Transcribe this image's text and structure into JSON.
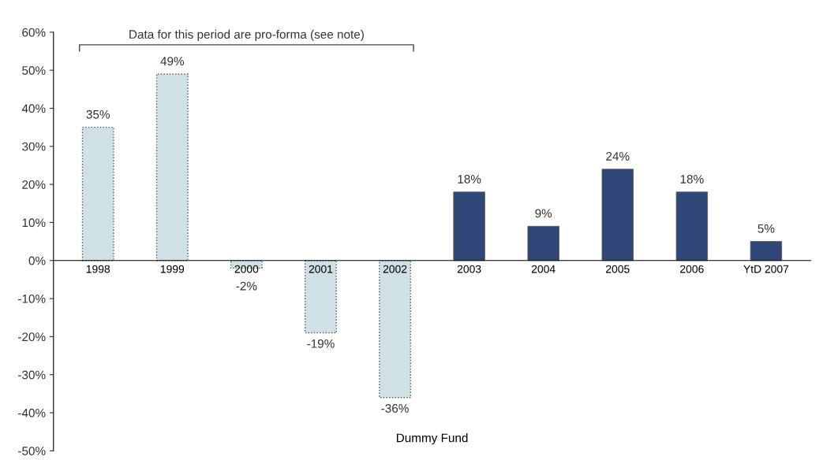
{
  "chart_data": {
    "type": "bar",
    "categories": [
      "1998",
      "1999",
      "2000",
      "2001",
      "2002",
      "2003",
      "2004",
      "2005",
      "2006",
      "YtD 2007"
    ],
    "series": [
      {
        "color": "#cfe1e6",
        "line_style": "dotted",
        "values": [
          35,
          49,
          -2,
          -19,
          -36,
          null,
          null,
          null,
          null,
          null
        ],
        "value_labels": [
          "35%",
          "49%",
          "-2%",
          "-19%",
          "-36%",
          null,
          null,
          null,
          null,
          null
        ]
      },
      {
        "color": "#2e4778",
        "line_style": "solid",
        "values": [
          null,
          null,
          null,
          null,
          null,
          18,
          9,
          24,
          18,
          5
        ],
        "value_labels": [
          null,
          null,
          null,
          null,
          null,
          "18%",
          "9%",
          "24%",
          "18%",
          "5%"
        ]
      }
    ],
    "xlabel": "Dummy Fund",
    "ylim": [
      -50,
      60
    ],
    "yticks": [
      {
        "value": -50,
        "label": "-50%"
      },
      {
        "value": -40,
        "label": "-40%"
      },
      {
        "value": -30,
        "label": "-30%"
      },
      {
        "value": -20,
        "label": "-20%"
      },
      {
        "value": -10,
        "label": "-10%"
      },
      {
        "value": 0,
        "label": "0%"
      },
      {
        "value": 10,
        "label": "10%"
      },
      {
        "value": 20,
        "label": "20%"
      },
      {
        "value": 30,
        "label": "30%"
      },
      {
        "value": 40,
        "label": "40%"
      },
      {
        "value": 50,
        "label": "50%"
      },
      {
        "value": 60,
        "label": "60%"
      }
    ],
    "annotations": [
      "Data for this period are pro-forma (see note)"
    ],
    "grid": false,
    "legend": false
  }
}
